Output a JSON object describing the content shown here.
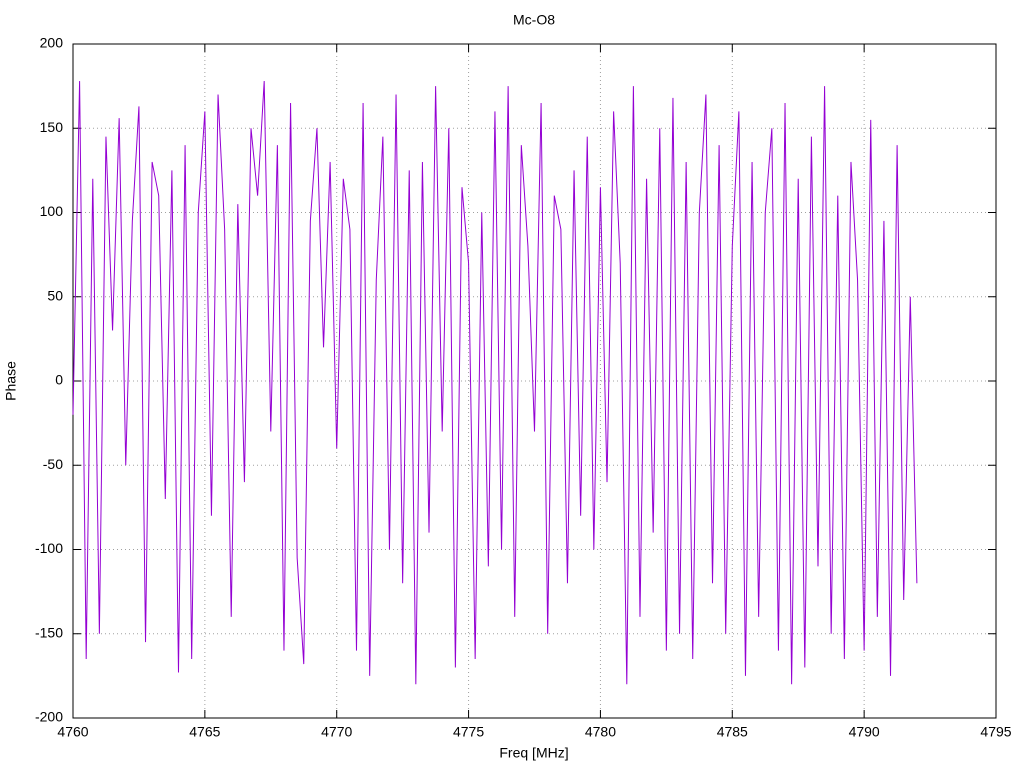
{
  "chart_data": {
    "type": "line",
    "title": "Mc-O8",
    "x_label": "Freq [MHz]",
    "y_label": "Phase",
    "xlim": [
      4760,
      4795
    ],
    "xticks": [
      4760,
      4765,
      4770,
      4775,
      4780,
      4785,
      4790,
      4795
    ],
    "ylim": [
      -200,
      200
    ],
    "yticks": [
      -200,
      -150,
      -100,
      -50,
      0,
      50,
      100,
      150,
      200
    ],
    "grid": true,
    "x": [
      4760,
      4760.25,
      4760.5,
      4760.75,
      4761,
      4761.25,
      4761.5,
      4761.75,
      4762,
      4762.25,
      4762.5,
      4762.75,
      4763,
      4763.25,
      4763.5,
      4763.75,
      4764,
      4764.25,
      4764.5,
      4764.75,
      4765,
      4765.25,
      4765.5,
      4765.75,
      4766,
      4766.25,
      4766.5,
      4766.75,
      4767,
      4767.25,
      4767.5,
      4767.75,
      4768,
      4768.25,
      4768.5,
      4768.75,
      4769,
      4769.25,
      4769.5,
      4769.75,
      4770,
      4770.25,
      4770.5,
      4770.75,
      4771,
      4771.25,
      4771.5,
      4771.75,
      4772,
      4772.25,
      4772.5,
      4772.75,
      4773,
      4773.25,
      4773.5,
      4773.75,
      4774,
      4774.25,
      4774.5,
      4774.75,
      4775,
      4775.25,
      4775.5,
      4775.75,
      4776,
      4776.25,
      4776.5,
      4776.75,
      4777,
      4777.25,
      4777.5,
      4777.75,
      4778,
      4778.25,
      4778.5,
      4778.75,
      4779,
      4779.25,
      4779.5,
      4779.75,
      4780,
      4780.25,
      4780.5,
      4780.75,
      4781,
      4781.25,
      4781.5,
      4781.75,
      4782,
      4782.25,
      4782.5,
      4782.75,
      4783,
      4783.25,
      4783.5,
      4783.75,
      4784,
      4784.25,
      4784.5,
      4784.75,
      4785,
      4785.25,
      4785.5,
      4785.75,
      4786,
      4786.25,
      4786.5,
      4786.75,
      4787,
      4787.25,
      4787.5,
      4787.75,
      4788,
      4788.25,
      4788.5,
      4788.75,
      4789,
      4789.25,
      4789.5,
      4789.75,
      4790,
      4790.25,
      4790.5,
      4790.75,
      4791,
      4791.25,
      4791.5,
      4791.75,
      4792
    ],
    "series": [
      {
        "name": "Phase",
        "color": "#9400d3",
        "values": [
          -20,
          178,
          -165,
          120,
          -150,
          145,
          30,
          156,
          -50,
          95,
          163,
          -155,
          130,
          110,
          -70,
          125,
          -173,
          140,
          -165,
          100,
          160,
          -80,
          170,
          90,
          -140,
          105,
          -60,
          150,
          110,
          178,
          -30,
          140,
          -160,
          165,
          -105,
          -168,
          95,
          150,
          20,
          130,
          -40,
          120,
          90,
          -160,
          165,
          -175,
          60,
          145,
          -100,
          170,
          -120,
          125,
          -180,
          130,
          -90,
          175,
          -30,
          150,
          -170,
          115,
          70,
          -165,
          100,
          -110,
          160,
          -100,
          175,
          -140,
          140,
          80,
          -30,
          165,
          -150,
          110,
          90,
          -120,
          125,
          -80,
          145,
          -100,
          115,
          -60,
          160,
          70,
          -180,
          175,
          -140,
          120,
          -90,
          150,
          -160,
          168,
          -150,
          130,
          -165,
          100,
          170,
          -120,
          140,
          -150,
          80,
          160,
          -175,
          130,
          -140,
          100,
          150,
          -160,
          165,
          -180,
          120,
          -170,
          145,
          -110,
          175,
          -150,
          110,
          -165,
          130,
          60,
          -160,
          155,
          -140,
          95,
          -175,
          140,
          -130,
          50,
          -120
        ]
      }
    ]
  }
}
